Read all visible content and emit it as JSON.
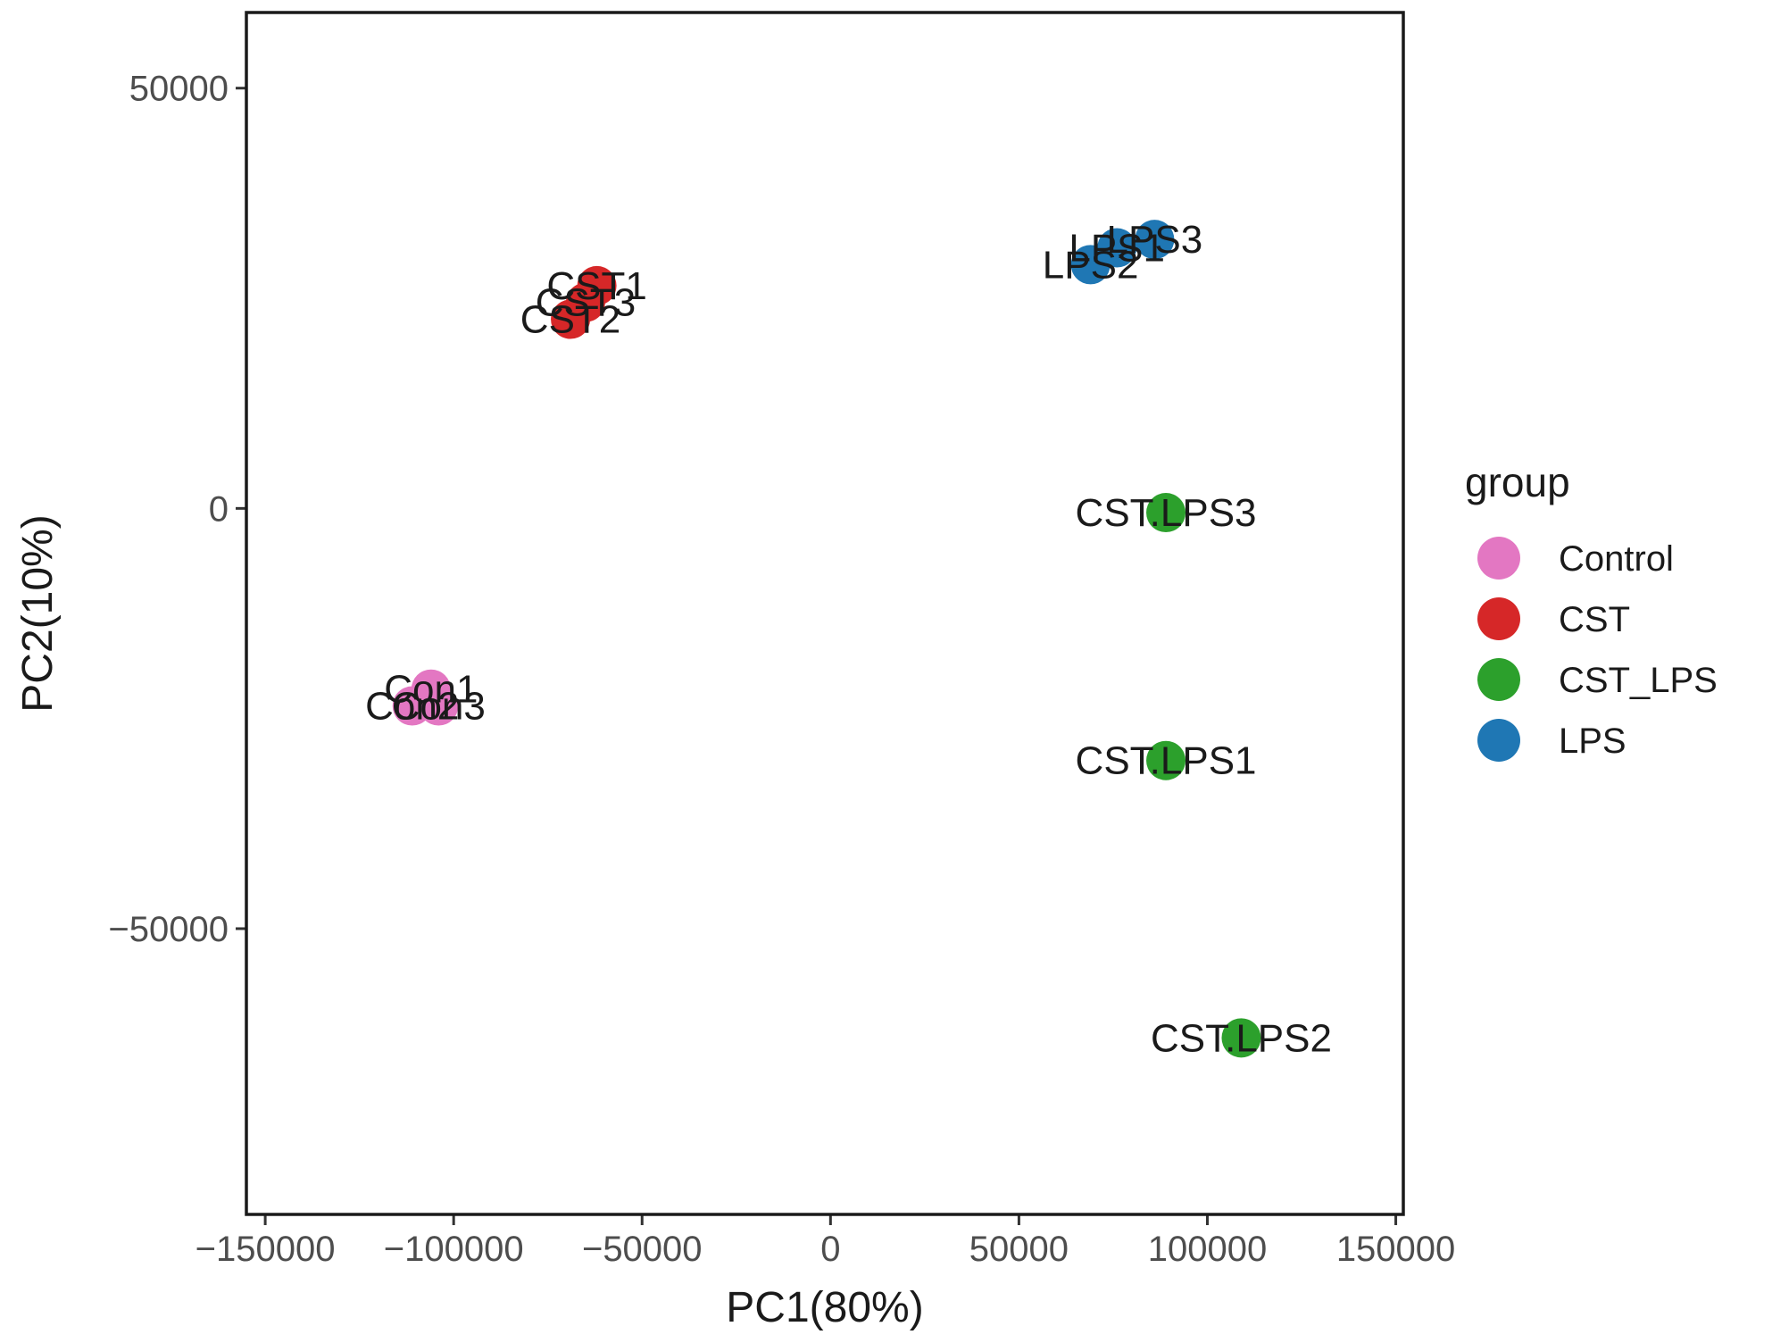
{
  "chart_data": {
    "type": "scatter",
    "xlabel": "PC1(80%)",
    "ylabel": "PC2(10%)",
    "xlim": [
      -155000,
      152000
    ],
    "ylim": [
      -84000,
      59000
    ],
    "xticks": [
      -150000,
      -100000,
      -50000,
      0,
      50000,
      100000,
      150000
    ],
    "xtick_labels": [
      "−150000",
      "−100000",
      "−50000",
      "0",
      "50000",
      "100000",
      "150000"
    ],
    "yticks": [
      50000,
      0,
      -50000
    ],
    "ytick_labels": [
      "50000",
      "0",
      "−50000"
    ],
    "grid": false,
    "legend_title": "group",
    "legend_position": "right",
    "groups": [
      {
        "name": "Control",
        "color": "#E377C2"
      },
      {
        "name": "CST",
        "color": "#D62728"
      },
      {
        "name": "CST_LPS",
        "color": "#2CA02C"
      },
      {
        "name": "LPS",
        "color": "#1F77B4"
      }
    ],
    "points": [
      {
        "label": "Con1",
        "group": "Control",
        "x": -106000,
        "y": -21500
      },
      {
        "label": "Con2",
        "group": "Control",
        "x": -111000,
        "y": -23500
      },
      {
        "label": "Con3",
        "group": "Control",
        "x": -104000,
        "y": -23500
      },
      {
        "label": "CST1",
        "group": "CST",
        "x": -62000,
        "y": 26500
      },
      {
        "label": "CST3",
        "group": "CST",
        "x": -65000,
        "y": 24500
      },
      {
        "label": "CST2",
        "group": "CST",
        "x": -69000,
        "y": 22500
      },
      {
        "label": "LPS1",
        "group": "LPS",
        "x": 76000,
        "y": 31000
      },
      {
        "label": "LPS3",
        "group": "LPS",
        "x": 86000,
        "y": 32000
      },
      {
        "label": "LPS2",
        "group": "LPS",
        "x": 69000,
        "y": 29000
      },
      {
        "label": "CST.LPS3",
        "group": "CST_LPS",
        "x": 89000,
        "y": -500
      },
      {
        "label": "CST.LPS1",
        "group": "CST_LPS",
        "x": 89000,
        "y": -30000
      },
      {
        "label": "CST.LPS2",
        "group": "CST_LPS",
        "x": 109000,
        "y": -63000
      }
    ]
  }
}
